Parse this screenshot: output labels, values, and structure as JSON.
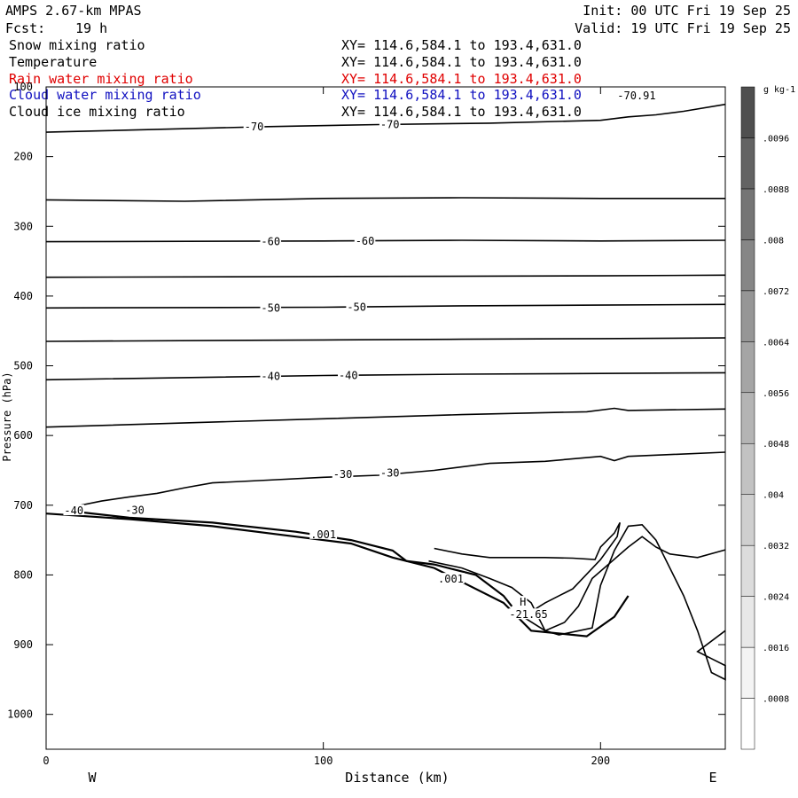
{
  "header": {
    "title": "AMPS 2.67-km MPAS",
    "init": "Init: 00 UTC Fri 19 Sep 25",
    "fcst_label": "Fcst:",
    "fcst_value": "19 h",
    "valid": "Valid: 19 UTC Fri 19 Sep 25"
  },
  "fields": [
    {
      "name": "Snow mixing ratio",
      "xy": "XY= 114.6,584.1 to 193.4,631.0",
      "color": "#000000"
    },
    {
      "name": "Temperature",
      "xy": "XY= 114.6,584.1 to 193.4,631.0",
      "color": "#000000"
    },
    {
      "name": "Rain water mixing ratio",
      "xy": "XY= 114.6,584.1 to 193.4,631.0",
      "color": "#e00000"
    },
    {
      "name": "Cloud water mixing ratio",
      "xy": "XY= 114.6,584.1 to 193.4,631.0",
      "color": "#1010c0"
    },
    {
      "name": "Cloud ice mixing ratio",
      "xy": "XY= 114.6,584.1 to 193.4,631.0",
      "color": "#000000"
    }
  ],
  "chart_data": {
    "type": "contour cross-section",
    "xlabel": "Distance (km)",
    "ylabel": "Pressure (hPa)",
    "xlim": [
      0,
      245
    ],
    "ylim": [
      1050,
      100
    ],
    "x_ticks": [
      0,
      100,
      200
    ],
    "y_ticks": [
      100,
      200,
      300,
      400,
      500,
      600,
      700,
      800,
      900,
      1000
    ],
    "left_end_label": "W",
    "right_end_label": "E",
    "grid": false,
    "temperature_contours": [
      {
        "label": "",
        "points": [
          [
            0,
            165
          ],
          [
            80,
            157
          ],
          [
            120,
            154
          ],
          [
            160,
            152
          ],
          [
            200,
            148
          ],
          [
            210,
            143
          ],
          [
            220,
            140
          ],
          [
            230,
            135
          ],
          [
            245,
            125
          ]
        ]
      },
      {
        "label": "",
        "points": [
          [
            0,
            262
          ],
          [
            50,
            264
          ],
          [
            100,
            260
          ],
          [
            150,
            259
          ],
          [
            200,
            260
          ],
          [
            245,
            260
          ]
        ]
      },
      {
        "label": "",
        "points": [
          [
            0,
            322
          ],
          [
            100,
            321
          ],
          [
            150,
            320
          ],
          [
            200,
            321
          ],
          [
            245,
            320
          ]
        ]
      },
      {
        "label": "",
        "points": [
          [
            0,
            373
          ],
          [
            100,
            372
          ],
          [
            200,
            371
          ],
          [
            245,
            370
          ]
        ]
      },
      {
        "label": "",
        "points": [
          [
            0,
            417
          ],
          [
            100,
            416
          ],
          [
            150,
            414
          ],
          [
            200,
            413
          ],
          [
            245,
            412
          ]
        ]
      },
      {
        "label": "",
        "points": [
          [
            0,
            465
          ],
          [
            100,
            463
          ],
          [
            150,
            462
          ],
          [
            200,
            461
          ],
          [
            245,
            460
          ]
        ]
      },
      {
        "label": "",
        "points": [
          [
            0,
            520
          ],
          [
            100,
            514
          ],
          [
            150,
            512
          ],
          [
            200,
            511
          ],
          [
            245,
            510
          ]
        ]
      },
      {
        "label": "",
        "points": [
          [
            0,
            588
          ],
          [
            100,
            576
          ],
          [
            150,
            570
          ],
          [
            195,
            566
          ],
          [
            205,
            561
          ],
          [
            210,
            564
          ],
          [
            245,
            562
          ]
        ]
      },
      {
        "label": "",
        "points": [
          [
            10,
            702
          ],
          [
            20,
            694
          ],
          [
            30,
            688
          ],
          [
            40,
            683
          ],
          [
            50,
            675
          ],
          [
            60,
            668
          ],
          [
            80,
            664
          ],
          [
            100,
            660
          ],
          [
            120,
            657
          ],
          [
            140,
            650
          ],
          [
            160,
            640
          ],
          [
            180,
            637
          ],
          [
            200,
            630
          ],
          [
            205,
            636
          ],
          [
            210,
            630
          ],
          [
            245,
            624
          ]
        ]
      },
      {
        "label": "",
        "points": [
          [
            8,
            708
          ],
          [
            30,
            718
          ],
          [
            60,
            725
          ],
          [
            90,
            738
          ],
          [
            110,
            750
          ],
          [
            125,
            765
          ],
          [
            130,
            780
          ],
          [
            140,
            785
          ],
          [
            155,
            800
          ],
          [
            165,
            830
          ],
          [
            168,
            845
          ]
        ]
      },
      {
        "label": "",
        "points": [
          [
            140,
            762
          ],
          [
            150,
            770
          ],
          [
            160,
            775
          ],
          [
            170,
            775
          ],
          [
            180,
            775
          ],
          [
            190,
            776
          ],
          [
            198,
            778
          ],
          [
            200,
            760
          ],
          [
            205,
            740
          ],
          [
            207,
            725
          ],
          [
            206,
            745
          ],
          [
            200,
            778
          ],
          [
            190,
            820
          ],
          [
            180,
            840
          ],
          [
            172,
            860
          ],
          [
            180,
            880
          ],
          [
            187,
            868
          ],
          [
            192,
            845
          ],
          [
            197,
            805
          ],
          [
            210,
            760
          ],
          [
            215,
            745
          ],
          [
            220,
            760
          ],
          [
            225,
            770
          ],
          [
            235,
            775
          ],
          [
            245,
            764
          ]
        ]
      },
      {
        "label": "",
        "points": [
          [
            138,
            780
          ],
          [
            150,
            790
          ],
          [
            160,
            805
          ],
          [
            168,
            818
          ],
          [
            175,
            840
          ],
          [
            180,
            880
          ],
          [
            185,
            886
          ],
          [
            197,
            876
          ],
          [
            200,
            815
          ],
          [
            205,
            765
          ],
          [
            210,
            730
          ],
          [
            215,
            728
          ],
          [
            220,
            750
          ],
          [
            225,
            790
          ],
          [
            230,
            830
          ],
          [
            235,
            880
          ],
          [
            240,
            940
          ],
          [
            245,
            950
          ],
          [
            245,
            930
          ],
          [
            240,
            920
          ],
          [
            235,
            910
          ],
          [
            245,
            880
          ]
        ]
      },
      {
        "label": "",
        "points": [
          [
            0,
            712
          ],
          [
            30,
            720
          ],
          [
            60,
            730
          ],
          [
            90,
            745
          ],
          [
            110,
            755
          ],
          [
            125,
            775
          ],
          [
            140,
            790
          ],
          [
            165,
            840
          ],
          [
            175,
            880
          ],
          [
            195,
            888
          ],
          [
            205,
            860
          ],
          [
            210,
            830
          ]
        ]
      }
    ],
    "contour_labels": [
      {
        "text": "-70",
        "x": 75,
        "y": 157
      },
      {
        "text": "-70",
        "x": 124,
        "y": 154
      },
      {
        "text": "-70.91",
        "x": 213,
        "y": 113
      },
      {
        "text": "-60",
        "x": 81,
        "y": 322
      },
      {
        "text": "-60",
        "x": 115,
        "y": 321
      },
      {
        "text": "-50",
        "x": 81,
        "y": 417
      },
      {
        "text": "-50",
        "x": 112,
        "y": 416
      },
      {
        "text": "-40",
        "x": 81,
        "y": 515
      },
      {
        "text": "-40",
        "x": 109,
        "y": 514
      },
      {
        "text": "-30",
        "x": 107,
        "y": 656
      },
      {
        "text": "-30",
        "x": 124,
        "y": 654
      },
      {
        "text": "-30",
        "x": 32,
        "y": 707
      },
      {
        "text": "-40",
        "x": 10,
        "y": 708
      },
      {
        "text": ".001",
        "x": 100,
        "y": 742
      },
      {
        "text": ".001",
        "x": 146,
        "y": 806
      },
      {
        "text": "H",
        "x": 172,
        "y": 839
      },
      {
        "text": "-21.65",
        "x": 174,
        "y": 857
      }
    ],
    "colorbar": {
      "unit": "g kg-1",
      "ticks": [
        ".0008",
        ".0016",
        ".0024",
        ".0032",
        ".004",
        ".0048",
        ".0056",
        ".0064",
        ".0072",
        ".008",
        ".0088",
        ".0096"
      ],
      "colors": [
        "#ffffff",
        "#f4f4f4",
        "#e8e8e8",
        "#dcdcdc",
        "#cfcfcf",
        "#c2c2c2",
        "#b4b4b4",
        "#a5a5a5",
        "#969696",
        "#868686",
        "#757575",
        "#636363",
        "#4f4f4f"
      ]
    }
  }
}
